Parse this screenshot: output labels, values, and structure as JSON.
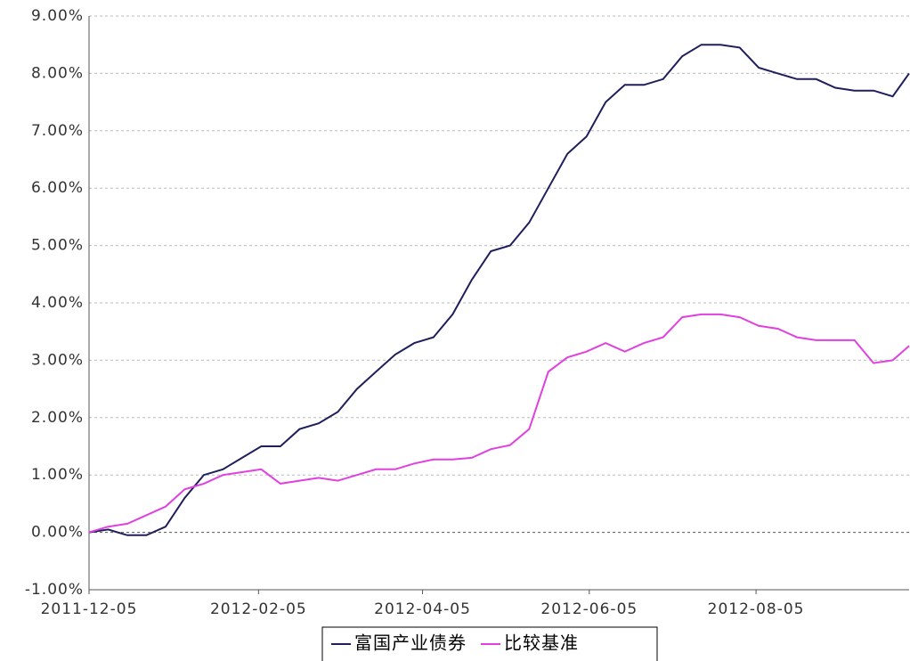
{
  "chart_data": {
    "type": "line",
    "x": [
      "2011-12-05",
      "2011-12-12",
      "2011-12-19",
      "2011-12-26",
      "2012-01-02",
      "2012-01-09",
      "2012-01-16",
      "2012-01-23",
      "2012-01-30",
      "2012-02-06",
      "2012-02-13",
      "2012-02-20",
      "2012-02-27",
      "2012-03-05",
      "2012-03-12",
      "2012-03-19",
      "2012-03-26",
      "2012-04-02",
      "2012-04-09",
      "2012-04-16",
      "2012-04-23",
      "2012-04-30",
      "2012-05-07",
      "2012-05-14",
      "2012-05-21",
      "2012-05-28",
      "2012-06-04",
      "2012-06-11",
      "2012-06-18",
      "2012-06-25",
      "2012-07-02",
      "2012-07-09",
      "2012-07-16",
      "2012-07-23",
      "2012-07-30",
      "2012-08-06",
      "2012-08-13",
      "2012-08-20",
      "2012-08-27",
      "2012-09-03",
      "2012-09-10",
      "2012-09-17",
      "2012-09-24",
      "2012-09-30"
    ],
    "series": [
      {
        "name": "富国产业债券",
        "color": "#1f1f5c",
        "values": [
          0,
          0.05,
          -0.05,
          -0.05,
          0.1,
          0.6,
          1.0,
          1.1,
          1.3,
          1.5,
          1.5,
          1.8,
          1.9,
          2.1,
          2.5,
          2.8,
          3.1,
          3.3,
          3.4,
          3.8,
          4.4,
          4.9,
          5.0,
          5.4,
          6.0,
          6.6,
          6.9,
          7.5,
          7.8,
          7.8,
          7.9,
          8.3,
          8.5,
          8.5,
          8.45,
          8.1,
          8.0,
          7.9,
          7.9,
          7.75,
          7.7,
          7.7,
          7.6,
          8.0
        ]
      },
      {
        "name": "比较基准",
        "color": "#e040e0",
        "values": [
          0,
          0.1,
          0.15,
          0.3,
          0.45,
          0.75,
          0.85,
          1.0,
          1.05,
          1.1,
          0.85,
          0.9,
          0.95,
          0.9,
          1.0,
          1.1,
          1.1,
          1.2,
          1.27,
          1.27,
          1.3,
          1.45,
          1.52,
          1.8,
          2.8,
          3.05,
          3.15,
          3.3,
          3.15,
          3.3,
          3.4,
          3.75,
          3.8,
          3.8,
          3.75,
          3.6,
          3.55,
          3.4,
          3.35,
          3.35,
          3.35,
          2.95,
          3.0,
          3.25
        ]
      }
    ],
    "xlim": [
      "2011-12-05",
      "2012-09-30"
    ],
    "xticks": [
      "2011-12-05",
      "2012-02-05",
      "2012-04-05",
      "2012-06-05",
      "2012-08-05"
    ],
    "ylim": [
      -1,
      9
    ],
    "yticks": [
      {
        "value": -1,
        "label": "-1.00%"
      },
      {
        "value": 0,
        "label": "0.00%"
      },
      {
        "value": 1,
        "label": "1.00%"
      },
      {
        "value": 2,
        "label": "2.00%"
      },
      {
        "value": 3,
        "label": "3.00%"
      },
      {
        "value": 4,
        "label": "4.00%"
      },
      {
        "value": 5,
        "label": "5.00%"
      },
      {
        "value": 6,
        "label": "6.00%"
      },
      {
        "value": 7,
        "label": "7.00%"
      },
      {
        "value": 8,
        "label": "8.00%"
      },
      {
        "value": 9,
        "label": "9.00%"
      }
    ],
    "grid": true
  }
}
